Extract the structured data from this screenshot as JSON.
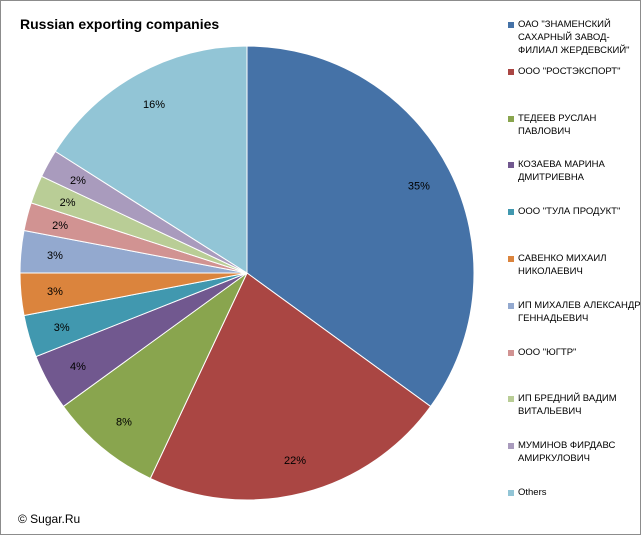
{
  "chart_data": {
    "type": "pie",
    "title": "Russian exporting companies",
    "slices": [
      {
        "label": "ОАО \"ЗНАМЕНСКИЙ САХАРНЫЙ ЗАВОД-ФИЛИАЛ ЖЕРДЕВСКИЙ\"",
        "value": 35,
        "label_text": "35%",
        "color": "#4572a7"
      },
      {
        "label": "ООО \"РОСТЭКСПОРТ\"",
        "value": 22,
        "label_text": "22%",
        "color": "#aa4643"
      },
      {
        "label": "ТЕДЕЕВ РУСЛАН ПАВЛОВИЧ",
        "value": 8,
        "label_text": "8%",
        "color": "#89a54e"
      },
      {
        "label": "КОЗАЕВА МАРИНА ДМИТРИЕВНА",
        "value": 4,
        "label_text": "4%",
        "color": "#71588f"
      },
      {
        "label": "ООО \"ТУЛА ПРОДУКТ\"",
        "value": 3,
        "label_text": "3%",
        "color": "#4198af"
      },
      {
        "label": "САВЕНКО МИХАИЛ НИКОЛАЕВИЧ",
        "value": 3,
        "label_text": "3%",
        "color": "#db843d"
      },
      {
        "label": "ИП МИХАЛЕВ АЛЕКСАНДР ГЕННАДЬЕВИЧ",
        "value": 3,
        "label_text": "3%",
        "color": "#93a9cf"
      },
      {
        "label": "ООО \"ЮГТР\"",
        "value": 2,
        "label_text": "2%",
        "color": "#d19392"
      },
      {
        "label": "ИП БРЕДНИЙ ВАДИМ ВИТАЛЬЕВИЧ",
        "value": 2,
        "label_text": "2%",
        "color": "#b9cd96"
      },
      {
        "label": "МУМИНОВ ФИРДАВС АМИРКУЛОВИЧ",
        "value": 2,
        "label_text": "2%",
        "color": "#a99bbd"
      },
      {
        "label": "Others",
        "value": 16,
        "label_text": "16%",
        "color": "#92c5d6"
      }
    ],
    "legend_position": "right"
  },
  "legend_display": [
    "ОАО \"ЗНАМЕНСКИЙ\nСАХАРНЫЙ ЗАВОД-\nФИЛИАЛ ЖЕРДЕВСКИЙ\"",
    "ООО \"РОСТЭКСПОРТ\"",
    "ТЕДЕЕВ РУСЛАН\nПАВЛОВИЧ",
    "КОЗАЕВА МАРИНА\nДМИТРИЕВНА",
    "ООО \"ТУЛА ПРОДУКТ\"",
    "САВЕНКО МИХАИЛ\nНИКОЛАЕВИЧ",
    "ИП МИХАЛЕВ АЛЕКСАНДР\nГЕННАДЬЕВИЧ",
    "ООО \"ЮГТР\"",
    "ИП БРЕДНИЙ ВАДИМ\nВИТАЛЬЕВИЧ",
    "МУМИНОВ ФИРДАВС\nАМИРКУЛОВИЧ",
    "Others"
  ],
  "footer": {
    "copyright": "© Sugar.Ru"
  }
}
